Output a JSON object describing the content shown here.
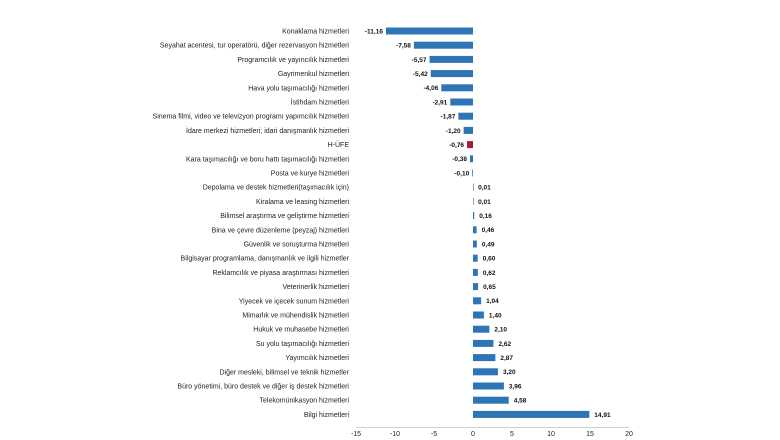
{
  "chart_data": {
    "type": "bar",
    "orientation": "horizontal",
    "title": "",
    "xlabel": "",
    "ylabel": "",
    "xlim": [
      -15,
      20
    ],
    "xticks": [
      -15,
      -10,
      -5,
      0,
      5,
      10,
      15,
      20
    ],
    "grid": false,
    "colors": {
      "default": "#2E75B6",
      "highlight": "#A31F34"
    },
    "highlight_category": "H-ÜFE",
    "categories": [
      "Konaklama hizmetleri",
      "Seyahat acentesi, tur operatörü, diğer rezervasyon hizmetleri",
      "Programcılık ve yayıncılık hizmetleri",
      "Gayrimenkul hizmetleri",
      "Hava yolu taşımacılığı hizmetleri",
      "İstihdam hizmetleri",
      "Sinema filmi, video ve televizyon programı yapımcılık hizmetleri",
      "İdare merkezi hizmetleri; idari danışmanlık hizmetleri",
      "H-ÜFE",
      "Kara taşımacılığı ve boru hattı taşımacılığı hizmetleri",
      "Posta ve kurye hizmetleri",
      "Depolama ve destek hizmetleri(taşımacılık için)",
      "Kiralama ve leasing hizmetleri",
      "Bilimsel araştırma ve geliştirme hizmetleri",
      "Bina ve çevre düzenleme (peyzaj) hizmetleri",
      "Güvenlik ve soruşturma hizmetleri",
      "Bilgisayar programlama, danışmanlık ve ilgili hizmetler",
      "Reklamcılık ve piyasa araştırması hizmetleri",
      "Veterinerlik hizmetleri",
      "Yiyecek ve içecek sunum hizmetleri",
      "Mimarlık ve mühendislik hizmetleri",
      "Hukuk ve muhasebe hizmetleri",
      "Su yolu taşımacılığı hizmetleri",
      "Yayımcılık hizmetleri",
      "Diğer mesleki, bilimsel ve teknik hizmetler",
      "Büro yönetimi, büro destek ve diğer iş destek hizmetleri",
      "Telekomünikasyon hizmetleri",
      "Bilgi hizmetleri"
    ],
    "values": [
      -11.16,
      -7.58,
      -5.57,
      -5.42,
      -4.06,
      -2.91,
      -1.87,
      -1.2,
      -0.76,
      -0.38,
      -0.1,
      0.01,
      0.01,
      0.16,
      0.46,
      0.49,
      0.6,
      0.62,
      0.65,
      1.04,
      1.4,
      2.1,
      2.62,
      2.87,
      3.2,
      3.96,
      4.58,
      14.91
    ],
    "value_labels": [
      "-11,16",
      "-7,58",
      "-5,57",
      "-5,42",
      "-4,06",
      "-2,91",
      "-1,87",
      "-1,20",
      "-0,76",
      "-0,38",
      "-0,10",
      "0,01",
      "0,01",
      "0,16",
      "0,46",
      "0,49",
      "0,60",
      "0,62",
      "0,65",
      "1,04",
      "1,40",
      "2,10",
      "2,62",
      "2,87",
      "3,20",
      "3,96",
      "4,58",
      "14,91"
    ]
  }
}
